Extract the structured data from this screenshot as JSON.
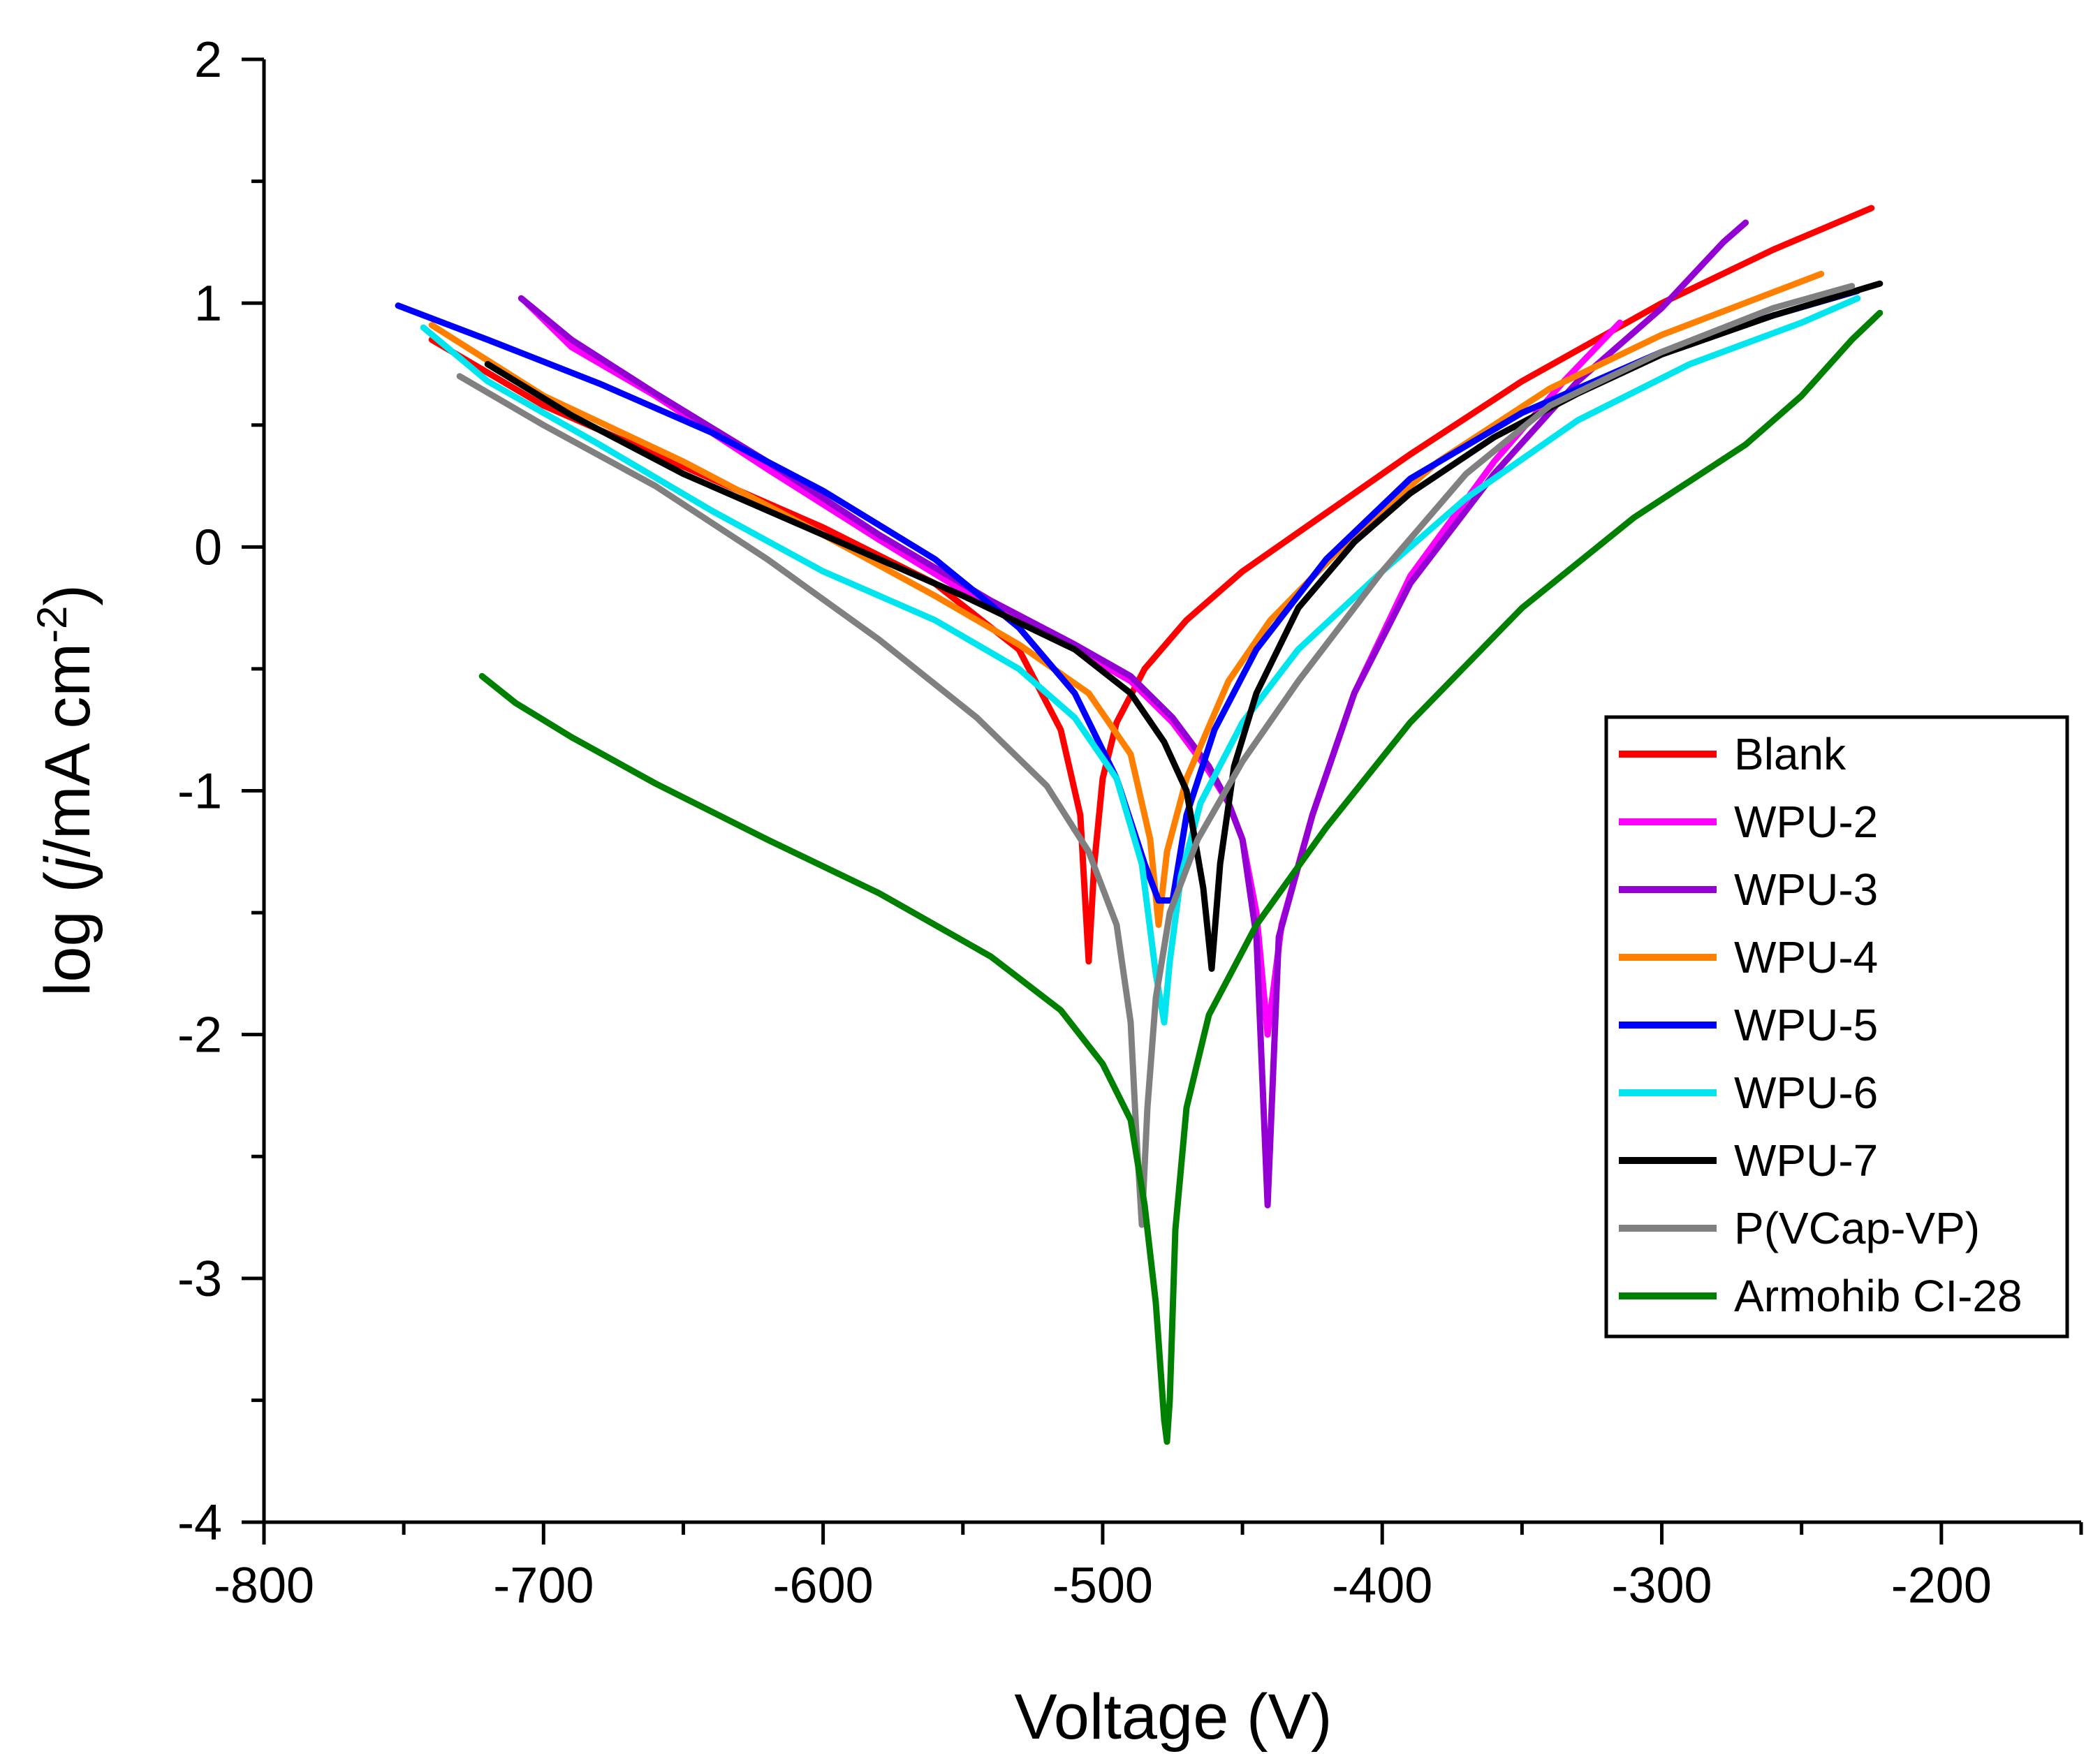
{
  "chart_data": {
    "type": "line",
    "title": "",
    "xlabel": "Voltage (V)",
    "ylabel": {
      "prefix": "log (",
      "italic": "j",
      "mid": "/mA cm",
      "sup": "-2",
      "suffix": ")"
    },
    "xlim": [
      -800,
      -150
    ],
    "ylim": [
      -4,
      2
    ],
    "x_ticks": [
      -800,
      -700,
      -600,
      -500,
      -400,
      -300,
      -200
    ],
    "x_tick_labels": [
      "-800",
      "-700",
      "-600",
      "-500",
      "-400",
      "-300",
      "-200"
    ],
    "x_minor_ticks": [
      -750,
      -650,
      -550,
      -450,
      -350,
      -250,
      -150
    ],
    "y_ticks": [
      -4,
      -3,
      -2,
      -1,
      0,
      1,
      2
    ],
    "y_tick_labels": [
      "-4",
      "-3",
      "-2",
      "-1",
      "0",
      "1",
      "2"
    ],
    "y_minor_ticks": [
      -3.5,
      -2.5,
      -1.5,
      -0.5,
      0.5,
      1.5
    ],
    "grid": false,
    "legend_position": "right",
    "series": [
      {
        "name": "Blank",
        "color": "#ff0000",
        "x": [
          -740,
          -700,
          -650,
          -600,
          -560,
          -530,
          -515,
          -508,
          -505,
          -503,
          -500,
          -495,
          -485,
          -470,
          -450,
          -420,
          -390,
          -350,
          -300,
          -260,
          -225
        ],
        "y": [
          0.85,
          0.58,
          0.33,
          0.08,
          -0.15,
          -0.42,
          -0.75,
          -1.1,
          -1.7,
          -1.3,
          -0.95,
          -0.72,
          -0.5,
          -0.3,
          -0.1,
          0.14,
          0.38,
          0.68,
          1.0,
          1.22,
          1.39
        ]
      },
      {
        "name": "WPU-2",
        "color": "#ff00ff",
        "x": [
          -706,
          -690,
          -660,
          -620,
          -580,
          -540,
          -510,
          -490,
          -475,
          -462,
          -455,
          -450,
          -445,
          -441,
          -436,
          -425,
          -410,
          -390,
          -360,
          -335,
          -315
        ],
        "y": [
          1.0,
          0.82,
          0.62,
          0.32,
          0.03,
          -0.25,
          -0.42,
          -0.55,
          -0.72,
          -0.92,
          -1.05,
          -1.2,
          -1.5,
          -2.0,
          -1.55,
          -1.1,
          -0.6,
          -0.12,
          0.35,
          0.68,
          0.92
        ]
      },
      {
        "name": "WPU-3",
        "color": "#9400d3",
        "x": [
          -708,
          -690,
          -660,
          -620,
          -580,
          -540,
          -510,
          -490,
          -475,
          -462,
          -455,
          -450,
          -445,
          -441,
          -437,
          -425,
          -410,
          -390,
          -360,
          -330,
          -300,
          -278,
          -270
        ],
        "y": [
          1.02,
          0.85,
          0.63,
          0.35,
          0.05,
          -0.22,
          -0.4,
          -0.53,
          -0.7,
          -0.9,
          -1.05,
          -1.2,
          -1.6,
          -2.7,
          -1.6,
          -1.1,
          -0.6,
          -0.15,
          0.3,
          0.68,
          0.98,
          1.25,
          1.33
        ]
      },
      {
        "name": "WPU-4",
        "color": "#ff8000",
        "x": [
          -740,
          -700,
          -650,
          -600,
          -560,
          -530,
          -505,
          -490,
          -483,
          -480,
          -477,
          -470,
          -455,
          -440,
          -410,
          -380,
          -340,
          -300,
          -243
        ],
        "y": [
          0.91,
          0.62,
          0.35,
          0.05,
          -0.2,
          -0.4,
          -0.6,
          -0.85,
          -1.2,
          -1.55,
          -1.25,
          -0.95,
          -0.55,
          -0.3,
          0.05,
          0.35,
          0.65,
          0.87,
          1.12
        ]
      },
      {
        "name": "WPU-5",
        "color": "#0000ff",
        "x": [
          -752,
          -720,
          -680,
          -640,
          -600,
          -560,
          -530,
          -510,
          -495,
          -485,
          -480,
          -475,
          -470,
          -460,
          -445,
          -420,
          -390,
          -350,
          -300,
          -260,
          -230
        ],
        "y": [
          0.99,
          0.85,
          0.67,
          0.47,
          0.23,
          -0.05,
          -0.33,
          -0.6,
          -0.95,
          -1.3,
          -1.45,
          -1.45,
          -1.1,
          -0.75,
          -0.42,
          -0.05,
          0.28,
          0.55,
          0.8,
          0.95,
          1.05
        ]
      },
      {
        "name": "WPU-6",
        "color": "#00e5ee",
        "x": [
          -743,
          -720,
          -680,
          -640,
          -600,
          -560,
          -530,
          -510,
          -495,
          -486,
          -481,
          -478,
          -476,
          -472,
          -465,
          -450,
          -430,
          -400,
          -370,
          -330,
          -290,
          -250,
          -230
        ],
        "y": [
          0.9,
          0.68,
          0.42,
          0.15,
          -0.1,
          -0.3,
          -0.5,
          -0.7,
          -0.95,
          -1.3,
          -1.75,
          -1.95,
          -1.7,
          -1.35,
          -1.05,
          -0.72,
          -0.42,
          -0.1,
          0.2,
          0.52,
          0.75,
          0.92,
          1.02
        ]
      },
      {
        "name": "WPU-7",
        "color": "#000000",
        "x": [
          -720,
          -690,
          -650,
          -600,
          -550,
          -510,
          -490,
          -478,
          -470,
          -464,
          -461,
          -458,
          -453,
          -445,
          -430,
          -410,
          -390,
          -360,
          -330,
          -300,
          -260,
          -222
        ],
        "y": [
          0.75,
          0.54,
          0.3,
          0.05,
          -0.2,
          -0.42,
          -0.6,
          -0.8,
          -1.0,
          -1.4,
          -1.73,
          -1.3,
          -0.9,
          -0.6,
          -0.25,
          0.02,
          0.22,
          0.45,
          0.63,
          0.79,
          0.95,
          1.08
        ]
      },
      {
        "name": "P(VCap-VP)",
        "color": "#808080",
        "x": [
          -730,
          -700,
          -660,
          -620,
          -580,
          -545,
          -520,
          -505,
          -495,
          -490,
          -488,
          -486,
          -484,
          -481,
          -476,
          -466,
          -450,
          -430,
          -400,
          -370,
          -340,
          -300,
          -260,
          -232
        ],
        "y": [
          0.7,
          0.5,
          0.25,
          -0.05,
          -0.38,
          -0.7,
          -0.98,
          -1.25,
          -1.55,
          -1.95,
          -2.4,
          -2.78,
          -2.3,
          -1.85,
          -1.5,
          -1.2,
          -0.88,
          -0.55,
          -0.1,
          0.3,
          0.58,
          0.8,
          0.98,
          1.07
        ]
      },
      {
        "name": "Armohib CI-28",
        "color": "#008000",
        "x": [
          -722,
          -710,
          -690,
          -660,
          -620,
          -580,
          -540,
          -515,
          -500,
          -490,
          -485,
          -481,
          -478,
          -477,
          -476,
          -474,
          -470,
          -462,
          -445,
          -420,
          -390,
          -350,
          -310,
          -270,
          -250,
          -232,
          -222
        ],
        "y": [
          -0.53,
          -0.64,
          -0.78,
          -0.97,
          -1.2,
          -1.42,
          -1.68,
          -1.9,
          -2.12,
          -2.35,
          -2.7,
          -3.1,
          -3.58,
          -3.67,
          -3.5,
          -2.8,
          -2.3,
          -1.92,
          -1.55,
          -1.15,
          -0.72,
          -0.25,
          0.12,
          0.42,
          0.62,
          0.85,
          0.96
        ]
      }
    ]
  }
}
